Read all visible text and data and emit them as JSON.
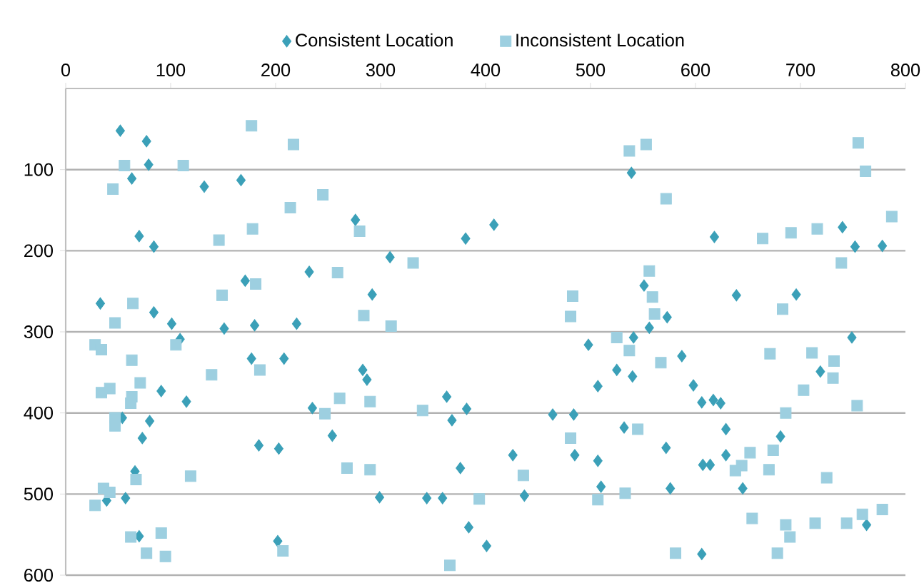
{
  "chart_data": {
    "type": "scatter",
    "xlim": [
      0,
      800
    ],
    "xticks": [
      0,
      100,
      200,
      300,
      400,
      500,
      600,
      700,
      800
    ],
    "ylim": [
      600,
      0
    ],
    "yticks": [
      100,
      200,
      300,
      400,
      500,
      600
    ],
    "grid": "y",
    "legend": "top",
    "series": [
      {
        "name": "Consistent Location",
        "color": "#3ba0b8",
        "marker": "diamond",
        "x": [
          52,
          77,
          79,
          63,
          132,
          167,
          539,
          70,
          84,
          232,
          33,
          84,
          101,
          109,
          171,
          151,
          180,
          220,
          177,
          208,
          91,
          115,
          80,
          73,
          54,
          235,
          184,
          203,
          66,
          57,
          39,
          202,
          70,
          276,
          381,
          408,
          309,
          292,
          283,
          287,
          254,
          363,
          368,
          382,
          376,
          299,
          344,
          359,
          384,
          401,
          426,
          437,
          464,
          484,
          485,
          507,
          510,
          498,
          525,
          507,
          532,
          618,
          740,
          752,
          778,
          551,
          573,
          556,
          541,
          639,
          696,
          587,
          540,
          598,
          606,
          617,
          624,
          629,
          572,
          681,
          719,
          749,
          629,
          607,
          614,
          576,
          645,
          606,
          763
        ],
        "values": [
          52,
          65,
          94,
          111,
          121,
          113,
          104,
          182,
          195,
          226,
          265,
          276,
          290,
          309,
          237,
          296,
          292,
          290,
          333,
          333,
          373,
          386,
          410,
          431,
          406,
          394,
          440,
          444,
          472,
          505,
          508,
          558,
          552,
          162,
          185,
          168,
          208,
          254,
          347,
          359,
          428,
          380,
          409,
          395,
          468,
          504,
          505,
          505,
          541,
          564,
          452,
          502,
          402,
          402,
          452,
          459,
          491,
          316,
          347,
          367,
          418,
          183,
          171,
          195,
          194,
          243,
          282,
          295,
          307,
          255,
          254,
          330,
          355,
          366,
          387,
          384,
          388,
          420,
          443,
          429,
          349,
          307,
          452,
          464,
          464,
          493,
          493,
          574,
          538
        ]
      },
      {
        "name": "Inconsistent Location",
        "color": "#9dcfe0",
        "marker": "square",
        "x": [
          177,
          217,
          56,
          112,
          45,
          537,
          553,
          755,
          762,
          245,
          214,
          178,
          146,
          181,
          149,
          64,
          47,
          28,
          34,
          105,
          63,
          139,
          185,
          34,
          42,
          71,
          63,
          62,
          47,
          47,
          119,
          67,
          36,
          42,
          28,
          62,
          91,
          77,
          95,
          207,
          280,
          259,
          331,
          284,
          310,
          261,
          247,
          290,
          340,
          268,
          290,
          394,
          436,
          366,
          483,
          481,
          525,
          481,
          507,
          572,
          664,
          691,
          716,
          787,
          739,
          556,
          559,
          561,
          683,
          537,
          567,
          671,
          711,
          732,
          731,
          703,
          686,
          754,
          545,
          674,
          652,
          644,
          638,
          670,
          725,
          533,
          654,
          686,
          690,
          714,
          744,
          759,
          778,
          581,
          678
        ],
        "values": [
          46,
          69,
          95,
          95,
          124,
          77,
          69,
          67,
          102,
          131,
          147,
          173,
          187,
          241,
          255,
          265,
          289,
          316,
          322,
          316,
          335,
          353,
          347,
          375,
          370,
          363,
          380,
          388,
          406,
          416,
          478,
          482,
          493,
          498,
          514,
          553,
          548,
          573,
          577,
          570,
          176,
          227,
          215,
          280,
          293,
          382,
          401,
          386,
          397,
          468,
          470,
          506,
          477,
          588,
          256,
          281,
          307,
          431,
          507,
          136,
          185,
          178,
          173,
          158,
          215,
          225,
          257,
          278,
          272,
          323,
          338,
          327,
          326,
          336,
          357,
          372,
          400,
          391,
          420,
          446,
          449,
          465,
          471,
          470,
          480,
          499,
          530,
          538,
          553,
          536,
          536,
          525,
          519,
          573,
          573
        ]
      }
    ]
  }
}
